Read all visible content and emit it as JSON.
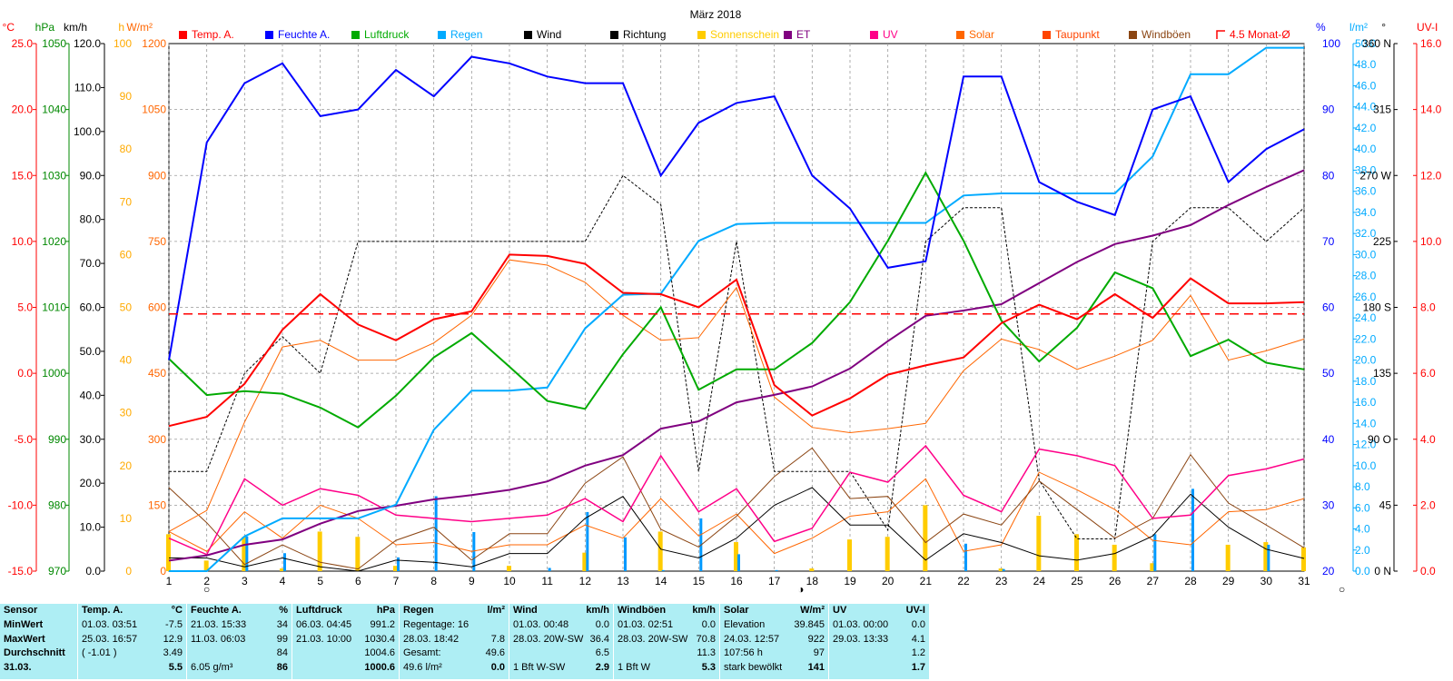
{
  "chart_data": {
    "type": "line",
    "title": "März 2018",
    "x": [
      1,
      2,
      3,
      4,
      5,
      6,
      7,
      8,
      9,
      10,
      11,
      12,
      13,
      14,
      15,
      16,
      17,
      18,
      19,
      20,
      21,
      22,
      23,
      24,
      25,
      26,
      27,
      28,
      29,
      30,
      31
    ],
    "xlim": [
      1,
      31
    ],
    "grid": true,
    "legend_position": "top",
    "axes": {
      "temp": {
        "unit": "°C",
        "color": "#ff0000",
        "ticks": [
          "25.0",
          "20.0",
          "15.0",
          "10.0",
          "5.0",
          "0.0",
          "-5.0",
          "-10.0",
          "-15.0"
        ],
        "ylim": [
          -15,
          25
        ]
      },
      "pressure": {
        "unit": "hPa",
        "color": "#008800",
        "ticks": [
          "1050",
          "1040",
          "1030",
          "1020",
          "1010",
          "1000",
          "990",
          "980",
          "970"
        ],
        "ylim": [
          970,
          1050
        ]
      },
      "wind": {
        "unit": "km/h",
        "color": "#000000",
        "ticks": [
          "120.0",
          "110.0",
          "100.0",
          "90.0",
          "80.0",
          "70.0",
          "60.0",
          "50.0",
          "40.0",
          "30.0",
          "20.0",
          "10.0",
          "0.0"
        ],
        "ylim": [
          0,
          120
        ]
      },
      "sunshine": {
        "unit": "h",
        "color": "#ffaa00",
        "ticks": [
          "100",
          "90",
          "80",
          "70",
          "60",
          "50",
          "40",
          "30",
          "20",
          "10",
          "0"
        ],
        "ylim": [
          0,
          100
        ]
      },
      "solar": {
        "unit": "W/m²",
        "color": "#ff6600",
        "ticks": [
          "1200",
          "1050",
          "900",
          "750",
          "600",
          "450",
          "300",
          "150",
          "0"
        ],
        "ylim": [
          0,
          1200
        ]
      },
      "humidity": {
        "unit": "%",
        "color": "#0000ff",
        "ticks": [
          "100",
          "90",
          "80",
          "70",
          "60",
          "50",
          "40",
          "30",
          "20"
        ],
        "ylim": [
          20,
          100
        ]
      },
      "rain": {
        "unit": "l/m²",
        "color": "#00aaff",
        "ticks": [
          "50.0",
          "48.0",
          "46.0",
          "44.0",
          "42.0",
          "40.0",
          "38.0",
          "36.0",
          "34.0",
          "32.0",
          "30.0",
          "28.0",
          "26.0",
          "24.0",
          "22.0",
          "20.0",
          "18.0",
          "16.0",
          "14.0",
          "12.0",
          "10.0",
          "8.0",
          "6.0",
          "4.0",
          "2.0",
          "0.0"
        ],
        "ylim": [
          0,
          50
        ]
      },
      "direction": {
        "unit": "°",
        "color": "#000000",
        "ticks": [
          "360 N",
          "315",
          "270 W",
          "225",
          "180 S",
          "135",
          "90 O",
          "45",
          "0 N"
        ],
        "ylim": [
          0,
          360
        ]
      },
      "uv": {
        "unit": "UV-I",
        "color": "#ff0000",
        "ticks": [
          "16.0",
          "14.0",
          "12.0",
          "10.0",
          "8.0",
          "6.0",
          "4.0",
          "2.0",
          "0.0"
        ],
        "ylim": [
          0,
          16
        ]
      }
    },
    "series": [
      {
        "name": "Temp. A.",
        "axis": "temp",
        "color": "#ff0000",
        "width": 2,
        "values": [
          -4.0,
          -3.3,
          -0.8,
          3.3,
          6.0,
          3.7,
          2.5,
          4.1,
          4.7,
          9.0,
          8.9,
          8.3,
          6.1,
          6.0,
          5.0,
          7.1,
          -0.9,
          -3.2,
          -1.9,
          -0.1,
          0.6,
          1.2,
          3.8,
          5.2,
          4.1,
          6.0,
          4.2,
          7.2,
          5.3,
          5.3,
          5.4
        ]
      },
      {
        "name": "Feuchte A.",
        "axis": "humidity",
        "color": "#0000ff",
        "width": 2,
        "values": [
          52,
          85,
          94,
          97,
          89,
          90,
          96,
          92,
          98,
          97,
          95,
          94,
          94,
          80,
          88,
          91,
          92,
          80,
          75,
          66,
          67,
          95,
          95,
          79,
          76,
          74,
          90,
          92,
          79,
          84,
          87
        ]
      },
      {
        "name": "Luftdruck",
        "axis": "pressure",
        "color": "#00aa00",
        "width": 2,
        "values": [
          1002.2,
          996.7,
          997.3,
          996.9,
          994.8,
          991.8,
          996.6,
          1002.4,
          1006.1,
          1001.0,
          995.8,
          994.6,
          1002.9,
          1010.0,
          997.5,
          1000.6,
          1000.6,
          1004.6,
          1010.8,
          1020.1,
          1030.4,
          1020.1,
          1008.0,
          1001.8,
          1006.9,
          1015.3,
          1012.9,
          1002.6,
          1005.1,
          1001.6,
          1000.6
        ]
      },
      {
        "name": "Regen",
        "axis": "rain",
        "color": "#00aaff",
        "width": 2,
        "values": [
          0.0,
          0.0,
          3.3,
          5.0,
          5.0,
          5.0,
          6.3,
          13.4,
          17.1,
          17.1,
          17.4,
          23.0,
          26.2,
          26.3,
          31.3,
          32.9,
          33.0,
          33.0,
          33.0,
          33.0,
          33.0,
          35.6,
          35.8,
          35.8,
          35.8,
          35.8,
          39.3,
          47.1,
          47.1,
          49.6,
          49.6
        ]
      },
      {
        "name": "Wind",
        "axis": "wind",
        "color": "#000000",
        "width": 1,
        "values": [
          3.0,
          3.0,
          1.0,
          3.0,
          1.0,
          0.0,
          2.5,
          2.0,
          1.0,
          4.0,
          4.0,
          12.0,
          17.0,
          5.0,
          3.0,
          7.5,
          15.0,
          19.0,
          10.5,
          10.5,
          2.5,
          8.5,
          6.5,
          3.5,
          2.5,
          4.0,
          8.0,
          17.5,
          10.0,
          5.0,
          2.9
        ]
      },
      {
        "name": "Richtung",
        "axis": "direction",
        "color": "#000000",
        "width": 1,
        "dashed": true,
        "values": [
          68,
          68,
          135,
          160,
          135,
          225,
          225,
          225,
          225,
          225,
          225,
          225,
          270,
          250,
          68,
          225,
          68,
          68,
          68,
          28,
          225,
          248,
          248,
          62,
          22,
          22,
          225,
          248,
          248,
          225,
          248
        ]
      },
      {
        "name": "Sonnenschein",
        "axis": "sunshine",
        "color": "#ffcc00",
        "type": "bar",
        "values": [
          7.0,
          2.0,
          6.5,
          0.5,
          7.5,
          6.5,
          1.0,
          0.0,
          0.0,
          1.0,
          0.0,
          3.5,
          0.0,
          7.5,
          0.0,
          5.5,
          0.0,
          0.5,
          6.0,
          6.5,
          12.5,
          0.0,
          0.5,
          10.5,
          7.0,
          5.0,
          1.5,
          0.0,
          5.0,
          5.5,
          4.5
        ]
      },
      {
        "name": "Regen (Tag)",
        "axis": "rain",
        "color": "#0099ff",
        "type": "bar",
        "values": [
          0.0,
          0.0,
          3.3,
          1.7,
          0.0,
          0.0,
          1.3,
          7.1,
          3.7,
          0.0,
          0.3,
          5.6,
          3.2,
          0.1,
          5.0,
          1.6,
          0.1,
          0.0,
          0.0,
          0.0,
          0.0,
          2.6,
          0.2,
          0.0,
          0.0,
          0.0,
          3.5,
          7.8,
          0.0,
          2.5,
          0.0
        ]
      },
      {
        "name": "ET",
        "axis": "rain",
        "color": "#800080",
        "width": 2,
        "values": [
          1.0,
          1.5,
          2.5,
          3.0,
          4.5,
          5.7,
          6.2,
          6.8,
          7.2,
          7.7,
          8.5,
          10.0,
          11.0,
          13.5,
          14.2,
          16.0,
          16.7,
          17.5,
          19.2,
          21.8,
          24.2,
          24.7,
          25.3,
          27.3,
          29.3,
          31.0,
          31.8,
          32.8,
          34.7,
          36.4,
          38.0
        ]
      },
      {
        "name": "UV",
        "axis": "uv",
        "color": "#ff0088",
        "width": 1.5,
        "values": [
          1.0,
          0.5,
          2.8,
          2.0,
          2.5,
          2.3,
          1.7,
          1.6,
          1.5,
          1.6,
          1.7,
          2.2,
          1.5,
          3.5,
          1.8,
          2.5,
          0.9,
          1.3,
          3.0,
          2.7,
          3.8,
          2.3,
          1.8,
          3.7,
          3.5,
          3.2,
          1.6,
          1.7,
          2.9,
          3.1,
          3.4
        ]
      },
      {
        "name": "Solar",
        "axis": "solar",
        "color": "#ff6600",
        "width": 1,
        "values": [
          90,
          45,
          135,
          75,
          150,
          120,
          60,
          65,
          45,
          60,
          60,
          105,
          75,
          165,
          80,
          130,
          40,
          75,
          125,
          135,
          210,
          45,
          60,
          225,
          185,
          140,
          70,
          60,
          135,
          140,
          165
        ]
      },
      {
        "name": "Taupunkt",
        "axis": "temp",
        "color": "#ff6600",
        "width": 1,
        "values": [
          -12.0,
          -10.4,
          -3.7,
          2.0,
          2.5,
          1.0,
          1.0,
          2.3,
          4.4,
          8.6,
          8.2,
          6.9,
          4.4,
          2.5,
          2.7,
          6.5,
          -1.8,
          -4.1,
          -4.5,
          -4.2,
          -3.8,
          0.2,
          2.6,
          1.8,
          0.3,
          1.3,
          2.5,
          5.9,
          1.0,
          1.7,
          2.6
        ]
      },
      {
        "name": "Windböen",
        "axis": "wind",
        "color": "#8b4513",
        "width": 1,
        "values": [
          19.0,
          11.0,
          1.5,
          6.0,
          2.0,
          0.5,
          7.0,
          10.0,
          2.5,
          8.5,
          8.5,
          20.0,
          26.0,
          9.5,
          5.5,
          12.5,
          21.5,
          28.0,
          16.5,
          17.0,
          6.5,
          13.0,
          10.5,
          20.5,
          14.0,
          7.5,
          12.0,
          26.5,
          15.5,
          10.5,
          5.3
        ]
      },
      {
        "name": "4.5 Monat-Ø",
        "axis": "temp",
        "color": "#ff0000",
        "width": 1.5,
        "dashed": true,
        "values": [
          4.5,
          4.5,
          4.5,
          4.5,
          4.5,
          4.5,
          4.5,
          4.5,
          4.5,
          4.5,
          4.5,
          4.5,
          4.5,
          4.5,
          4.5,
          4.5,
          4.5,
          4.5,
          4.5,
          4.5,
          4.5,
          4.5,
          4.5,
          4.5,
          4.5,
          4.5,
          4.5,
          4.5,
          4.5,
          4.5,
          4.5
        ]
      }
    ],
    "legend": [
      {
        "label": "Temp. A.",
        "color": "#ff0000",
        "box": "filled"
      },
      {
        "label": "Feuchte A.",
        "color": "#0000ff",
        "box": "filled"
      },
      {
        "label": "Luftdruck",
        "color": "#00aa00",
        "box": "filled"
      },
      {
        "label": "Regen",
        "color": "#00aaff",
        "box": "filled"
      },
      {
        "label": "Wind",
        "color": "#000000",
        "box": "filled"
      },
      {
        "label": "Richtung",
        "color": "#000000",
        "box": "filled"
      },
      {
        "label": "Sonnenschein",
        "color": "#ffcc00",
        "box": "filled"
      },
      {
        "label": "ET",
        "color": "#800080",
        "box": "filled"
      },
      {
        "label": "UV",
        "color": "#ff0088",
        "box": "filled"
      },
      {
        "label": "Solar",
        "color": "#ff6600",
        "box": "filled"
      },
      {
        "label": "Taupunkt",
        "color": "#ff4400",
        "box": "filled"
      },
      {
        "label": "Windböen",
        "color": "#8b4513",
        "box": "filled"
      },
      {
        "label": "4.5 Monat-Ø",
        "color": "#ff0000",
        "box": "outline"
      }
    ],
    "moon_phases": [
      {
        "day": 2,
        "symbol": "○"
      },
      {
        "day": 17.7,
        "symbol": "◑"
      },
      {
        "day": 32,
        "symbol": "○"
      }
    ]
  },
  "stats": {
    "panels": [
      {
        "header": [
          "Sensor",
          ""
        ],
        "rows": [
          [
            "MinWert"
          ],
          [
            "MaxWert"
          ],
          [
            "Durchschnitt"
          ],
          [
            "31.03."
          ]
        ]
      },
      {
        "header": [
          "Temp. A.",
          "°C"
        ],
        "rows": [
          [
            "01.03.  03:51",
            "-7.5"
          ],
          [
            "25.03.  16:57",
            "12.9"
          ],
          [
            "( -1.01 )",
            "3.49"
          ],
          [
            "",
            "5.5"
          ]
        ]
      },
      {
        "header": [
          "Feuchte A.",
          "%"
        ],
        "rows": [
          [
            "21.03.  15:33",
            "34"
          ],
          [
            "11.03.  06:03",
            "99"
          ],
          [
            "",
            "84"
          ],
          [
            "6.05 g/m³",
            "86"
          ]
        ]
      },
      {
        "header": [
          "Luftdruck",
          "hPa"
        ],
        "rows": [
          [
            "06.03.  04:45",
            "991.2"
          ],
          [
            "21.03.  10:00",
            "1030.4"
          ],
          [
            "",
            "1004.6"
          ],
          [
            "",
            "1000.6"
          ]
        ]
      },
      {
        "header": [
          "Regen",
          "l/m²"
        ],
        "rows": [
          [
            "Regentage: 16",
            ""
          ],
          [
            "28.03.  18:42",
            "7.8"
          ],
          [
            "Gesamt:",
            "49.6"
          ],
          [
            "49.6 l/m²",
            "0.0"
          ]
        ]
      },
      {
        "header": [
          "Wind",
          "km/h"
        ],
        "rows": [
          [
            "01.03.  00:48",
            "0.0"
          ],
          [
            "28.03.  20W-SW",
            "36.4"
          ],
          [
            "",
            "6.5"
          ],
          [
            "1 Bft W-SW",
            "2.9"
          ]
        ]
      },
      {
        "header": [
          "Windböen",
          "km/h"
        ],
        "rows": [
          [
            "01.03.  02:51",
            "0.0"
          ],
          [
            "28.03.  20W-SW",
            "70.8"
          ],
          [
            "",
            "11.3"
          ],
          [
            "1 Bft W",
            "5.3"
          ]
        ]
      },
      {
        "header": [
          "Solar",
          "W/m²"
        ],
        "rows": [
          [
            "Elevation",
            "39.845"
          ],
          [
            "24.03.  12:57",
            "922"
          ],
          [
            "107:56 h",
            "97"
          ],
          [
            "stark bewölkt",
            "141"
          ]
        ]
      },
      {
        "header": [
          "UV",
          "UV-I"
        ],
        "rows": [
          [
            "01.03.  00:00",
            "0.0"
          ],
          [
            "29.03.  13:33",
            "4.1"
          ],
          [
            "",
            "1.2"
          ],
          [
            "",
            "1.7"
          ]
        ]
      }
    ]
  }
}
